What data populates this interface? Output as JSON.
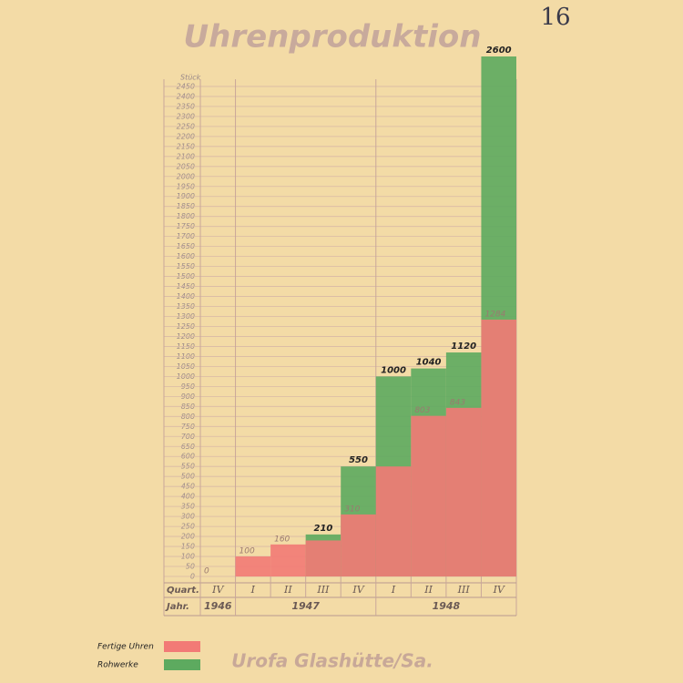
{
  "page_number": "16",
  "chart_data": {
    "type": "overlap_bar",
    "title": "Uhrenproduktion",
    "y_label": "Stück",
    "quarter_header": "Quart.",
    "year_header": "Jahr.",
    "categories": [
      "IV",
      "I",
      "II",
      "III",
      "IV",
      "I",
      "II",
      "III",
      "IV"
    ],
    "years": [
      "1946",
      "1947",
      null,
      null,
      null,
      "1948",
      null,
      null,
      null
    ],
    "series": [
      {
        "name": "Rohwerke",
        "color": "#5daa5f",
        "values": [
          null,
          null,
          null,
          210,
          550,
          1000,
          1040,
          1120,
          2600
        ]
      },
      {
        "name": "Fertige Uhren",
        "color": "#f27a76",
        "values": [
          0,
          100,
          160,
          180,
          310,
          550,
          803,
          843,
          1284
        ],
        "value_labels": [
          "0",
          "100",
          "160",
          null,
          "310",
          null,
          "803",
          "843",
          "1284"
        ]
      }
    ],
    "ylim": [
      0,
      2600
    ],
    "yticks": [
      0,
      50,
      100,
      150,
      200,
      250,
      300,
      350,
      400,
      450,
      500,
      550,
      600,
      650,
      700,
      750,
      800,
      850,
      900,
      950,
      1000,
      1050,
      1100,
      1150,
      1200,
      1250,
      1300,
      1350,
      1400,
      1450,
      1500,
      1550,
      1600,
      1650,
      1700,
      1750,
      1800,
      1850,
      1900,
      1950,
      2000,
      2050,
      2100,
      2150,
      2200,
      2250,
      2300,
      2350,
      2400,
      2450
    ],
    "grid": true
  },
  "footer": "Urofa Glashütte/Sa."
}
